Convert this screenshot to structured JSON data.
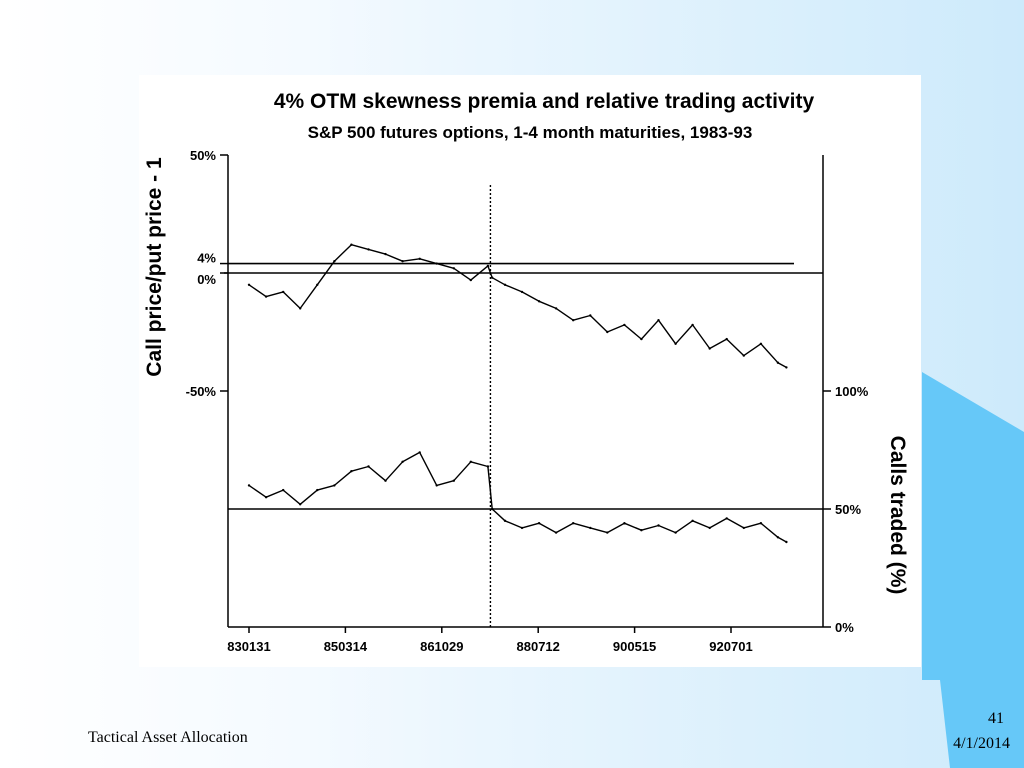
{
  "slide": {
    "footer_title": "Tactical Asset Allocation",
    "page_number": "41",
    "date": "4/1/2014",
    "accent_color": "#66c8f8",
    "background_color": "#e3f3fd"
  },
  "chart_data": {
    "type": "line",
    "title": "4% OTM skewness premia and relative trading activity",
    "subtitle": "S&P 500 futures options, 1-4 month maturities, 1983-93",
    "left_axis": {
      "label": "Call price/put price - 1",
      "ticks": [
        "50%",
        "4%",
        "0%",
        "-50%"
      ],
      "tick_values": [
        50,
        4,
        0,
        -50
      ]
    },
    "right_axis": {
      "label": "Calls traded (%)",
      "ticks": [
        "100%",
        "50%",
        "0%"
      ],
      "tick_values": [
        100,
        50,
        0
      ]
    },
    "x_axis": {
      "tick_labels": [
        "830131",
        "850314",
        "861029",
        "880712",
        "900515",
        "920701"
      ]
    },
    "reference_lines": [
      {
        "axis": "left",
        "value": 4
      },
      {
        "axis": "left",
        "value": 0
      },
      {
        "axis": "right",
        "value": 50
      }
    ],
    "event_marker_date": "871019",
    "series": [
      {
        "axis": "left",
        "x": [
          "830131",
          "830601",
          "831001",
          "840201",
          "840601",
          "841001",
          "850201",
          "850601",
          "851001",
          "860201",
          "860601",
          "861001",
          "870201",
          "870601",
          "871001",
          "871101",
          "880201",
          "880601",
          "881001",
          "890201",
          "890601",
          "891001",
          "900201",
          "900601",
          "901001",
          "910201",
          "910601",
          "911001",
          "920201",
          "920601",
          "921001",
          "930201",
          "930601",
          "930801"
        ],
        "values": [
          -5,
          -10,
          -8,
          -15,
          -5,
          5,
          12,
          10,
          8,
          5,
          6,
          4,
          2,
          -3,
          3,
          -2,
          -5,
          -8,
          -12,
          -15,
          -20,
          -18,
          -25,
          -22,
          -28,
          -20,
          -30,
          -22,
          -32,
          -28,
          -35,
          -30,
          -38,
          -40
        ]
      },
      {
        "axis": "right",
        "x": [
          "830131",
          "830601",
          "831001",
          "840201",
          "840601",
          "841001",
          "850201",
          "850601",
          "851001",
          "860201",
          "860601",
          "861001",
          "870201",
          "870601",
          "871001",
          "871101",
          "880201",
          "880601",
          "881001",
          "890201",
          "890601",
          "891001",
          "900201",
          "900601",
          "901001",
          "910201",
          "910601",
          "911001",
          "920201",
          "920601",
          "921001",
          "930201",
          "930601",
          "930801"
        ],
        "values": [
          60,
          55,
          58,
          52,
          58,
          60,
          66,
          68,
          62,
          70,
          74,
          60,
          62,
          70,
          68,
          50,
          45,
          42,
          44,
          40,
          44,
          42,
          40,
          44,
          41,
          43,
          40,
          45,
          42,
          46,
          42,
          44,
          38,
          36
        ]
      }
    ],
    "grid": false
  }
}
